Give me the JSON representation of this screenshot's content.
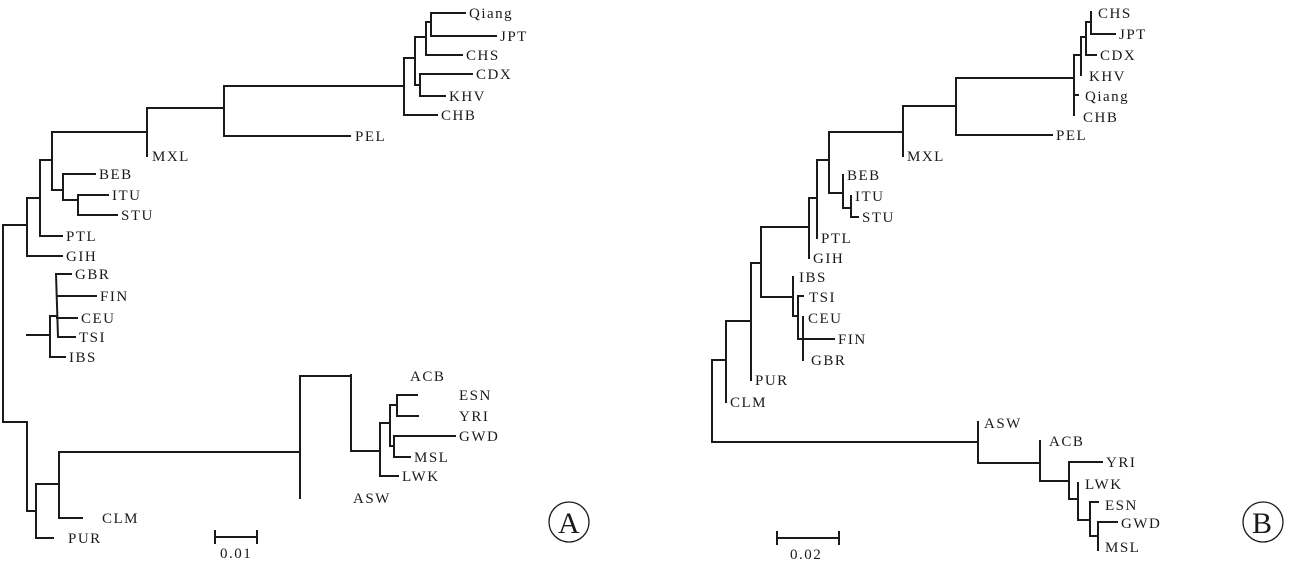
{
  "panels": [
    {
      "letter": "A",
      "scale_label": "0.01",
      "taxa": [
        "Qiang",
        "JPT",
        "CHS",
        "CDX",
        "KHV",
        "CHB",
        "PEL",
        "MXL",
        "BEB",
        "ITU",
        "STU",
        "PTL",
        "GIH",
        "GBR",
        "FIN",
        "CEU",
        "TSI",
        "IBS",
        "ACB",
        "ESN",
        "YRI",
        "GWD",
        "MSL",
        "LWK",
        "ASW",
        "CLM",
        "PUR"
      ]
    },
    {
      "letter": "B",
      "scale_label": "0.02",
      "taxa": [
        "CHS",
        "JPT",
        "CDX",
        "KHV",
        "Qiang",
        "CHB",
        "PEL",
        "MXL",
        "BEB",
        "ITU",
        "STU",
        "PTL",
        "GIH",
        "IBS",
        "TSI",
        "CEU",
        "FIN",
        "GBR",
        "PUR",
        "CLM",
        "ASW",
        "ACB",
        "YRI",
        "LWK",
        "ESN",
        "GWD",
        "MSL"
      ]
    }
  ],
  "colors": {
    "line": "#1a1a1a",
    "background": "#ffffff"
  }
}
